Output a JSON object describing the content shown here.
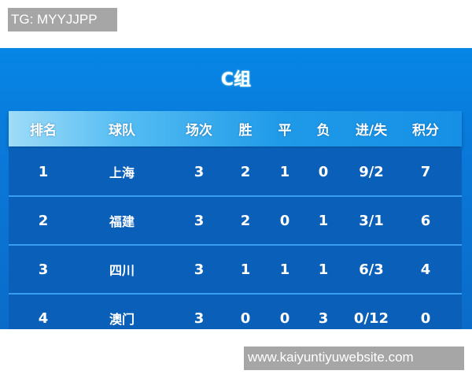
{
  "watermarks": {
    "top": "TG: MYYJJPP",
    "bottom": "www.kaiyuntiyuwebsite.com"
  },
  "title": "C组",
  "columns": [
    "排名",
    "球队",
    "场次",
    "胜",
    "平",
    "负",
    "进/失",
    "积分"
  ],
  "rows": [
    [
      "1",
      "上海",
      "3",
      "2",
      "1",
      "0",
      "9/2",
      "7"
    ],
    [
      "2",
      "福建",
      "3",
      "2",
      "0",
      "1",
      "3/1",
      "6"
    ],
    [
      "3",
      "四川",
      "3",
      "1",
      "1",
      "1",
      "6/3",
      "4"
    ],
    [
      "4",
      "澳门",
      "3",
      "0",
      "0",
      "3",
      "0/12",
      "0"
    ]
  ],
  "colors": {
    "panel": "#0686e6",
    "row": "#0a5fb8",
    "header_light": "#9fdcf8"
  }
}
